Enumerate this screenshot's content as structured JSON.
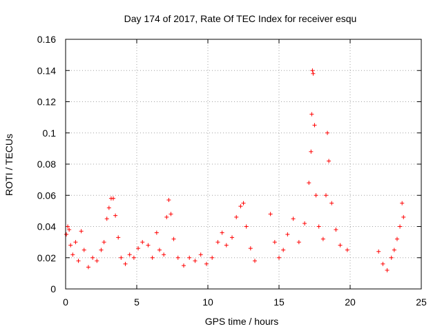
{
  "chart_data": {
    "type": "scatter",
    "title": "Day 174 of 2017, Rate Of TEC Index for receiver esqu",
    "xlabel": "GPS time / hours",
    "ylabel": "ROTI / TECUs",
    "xlim": [
      0,
      25
    ],
    "ylim": [
      0,
      0.16
    ],
    "xticks": [
      0,
      5,
      10,
      15,
      20,
      25
    ],
    "xtick_labels": [
      "0",
      "5",
      "10",
      "15",
      "20",
      "25"
    ],
    "yticks": [
      0,
      0.02,
      0.04,
      0.06,
      0.08,
      0.1,
      0.12,
      0.14,
      0.16
    ],
    "ytick_labels": [
      "0",
      "0.02",
      "0.04",
      "0.06",
      "0.08",
      "0.1",
      "0.12",
      "0.14",
      "0.16"
    ],
    "grid": true,
    "marker": "plus",
    "color": "#ff0000",
    "series": [
      {
        "points": [
          [
            0.05,
            0.035
          ],
          [
            0.15,
            0.04
          ],
          [
            0.25,
            0.038
          ],
          [
            0.35,
            0.028
          ],
          [
            0.5,
            0.022
          ],
          [
            0.7,
            0.03
          ],
          [
            0.9,
            0.018
          ],
          [
            1.1,
            0.037
          ],
          [
            1.3,
            0.025
          ],
          [
            1.6,
            0.014
          ],
          [
            1.9,
            0.02
          ],
          [
            2.2,
            0.018
          ],
          [
            2.5,
            0.025
          ],
          [
            2.7,
            0.03
          ],
          [
            2.9,
            0.045
          ],
          [
            3.05,
            0.052
          ],
          [
            3.2,
            0.058
          ],
          [
            3.35,
            0.058
          ],
          [
            3.5,
            0.047
          ],
          [
            3.7,
            0.033
          ],
          [
            3.9,
            0.02
          ],
          [
            4.2,
            0.016
          ],
          [
            4.5,
            0.022
          ],
          [
            4.8,
            0.02
          ],
          [
            5.1,
            0.026
          ],
          [
            5.4,
            0.03
          ],
          [
            5.8,
            0.028
          ],
          [
            6.1,
            0.02
          ],
          [
            6.4,
            0.036
          ],
          [
            6.6,
            0.025
          ],
          [
            6.9,
            0.022
          ],
          [
            7.1,
            0.046
          ],
          [
            7.25,
            0.057
          ],
          [
            7.4,
            0.048
          ],
          [
            7.6,
            0.032
          ],
          [
            7.9,
            0.02
          ],
          [
            8.3,
            0.015
          ],
          [
            8.7,
            0.02
          ],
          [
            9.1,
            0.018
          ],
          [
            9.5,
            0.022
          ],
          [
            9.9,
            0.016
          ],
          [
            10.3,
            0.02
          ],
          [
            10.7,
            0.03
          ],
          [
            11.0,
            0.036
          ],
          [
            11.3,
            0.028
          ],
          [
            11.7,
            0.033
          ],
          [
            12.0,
            0.046
          ],
          [
            12.3,
            0.053
          ],
          [
            12.5,
            0.055
          ],
          [
            12.7,
            0.04
          ],
          [
            13.0,
            0.026
          ],
          [
            13.3,
            0.018
          ],
          [
            14.4,
            0.048
          ],
          [
            14.7,
            0.03
          ],
          [
            15.0,
            0.02
          ],
          [
            15.3,
            0.025
          ],
          [
            15.6,
            0.035
          ],
          [
            16.0,
            0.045
          ],
          [
            16.4,
            0.03
          ],
          [
            16.8,
            0.042
          ],
          [
            17.1,
            0.068
          ],
          [
            17.25,
            0.088
          ],
          [
            17.3,
            0.112
          ],
          [
            17.35,
            0.14
          ],
          [
            17.4,
            0.138
          ],
          [
            17.5,
            0.105
          ],
          [
            17.6,
            0.06
          ],
          [
            17.8,
            0.04
          ],
          [
            18.1,
            0.032
          ],
          [
            18.3,
            0.06
          ],
          [
            18.4,
            0.1
          ],
          [
            18.5,
            0.082
          ],
          [
            18.7,
            0.055
          ],
          [
            19.0,
            0.038
          ],
          [
            19.3,
            0.028
          ],
          [
            19.8,
            0.025
          ],
          [
            22.0,
            0.024
          ],
          [
            22.3,
            0.016
          ],
          [
            22.6,
            0.012
          ],
          [
            22.9,
            0.02
          ],
          [
            23.1,
            0.025
          ],
          [
            23.3,
            0.032
          ],
          [
            23.5,
            0.04
          ],
          [
            23.65,
            0.055
          ],
          [
            23.75,
            0.046
          ]
        ]
      }
    ]
  }
}
